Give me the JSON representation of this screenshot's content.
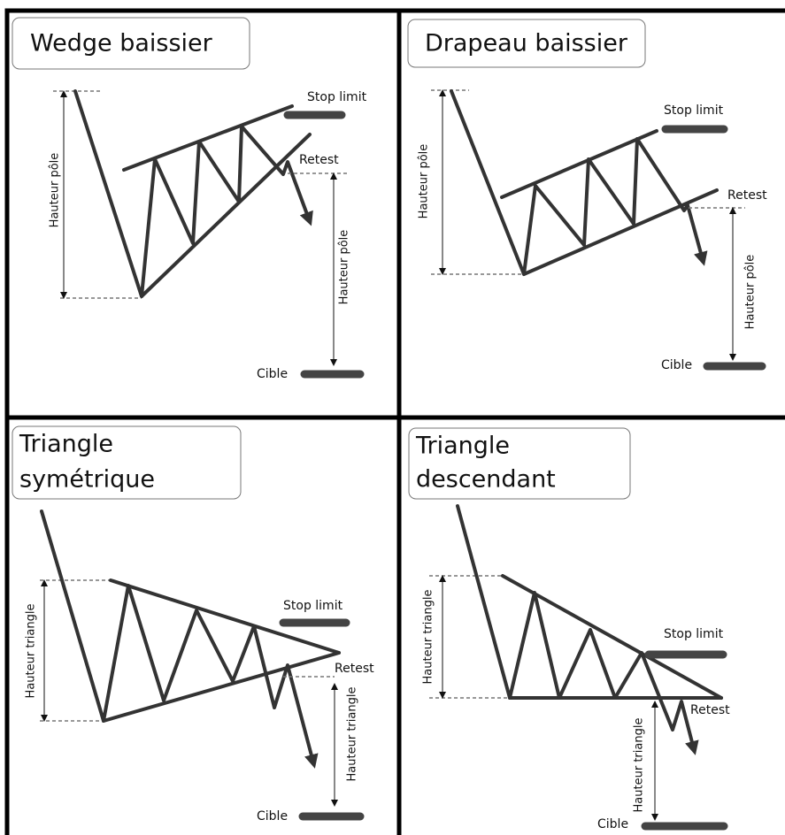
{
  "panels": [
    {
      "title": [
        "Wedge baissier"
      ],
      "height_left": "Hauteur pôle",
      "height_right": "Hauteur pôle",
      "stop": "Stop limit",
      "retest": "Retest",
      "target": "Cible"
    },
    {
      "title": [
        "Drapeau baissier"
      ],
      "height_left": "Hauteur pôle",
      "height_right": "Hauteur pôle",
      "stop": "Stop limit",
      "retest": "Retest",
      "target": "Cible"
    },
    {
      "title": [
        "Triangle",
        "symétrique"
      ],
      "height_left": "Hauteur triangle",
      "height_right": "Hauteur triangle",
      "stop": "Stop limit",
      "retest": "Retest",
      "target": "Cible"
    },
    {
      "title": [
        "Triangle",
        "descendant"
      ],
      "height_left": "Hauteur triangle",
      "height_right": "Hauteur triangle",
      "stop": "Stop limit",
      "retest": "Retest",
      "target": "Cible"
    }
  ]
}
